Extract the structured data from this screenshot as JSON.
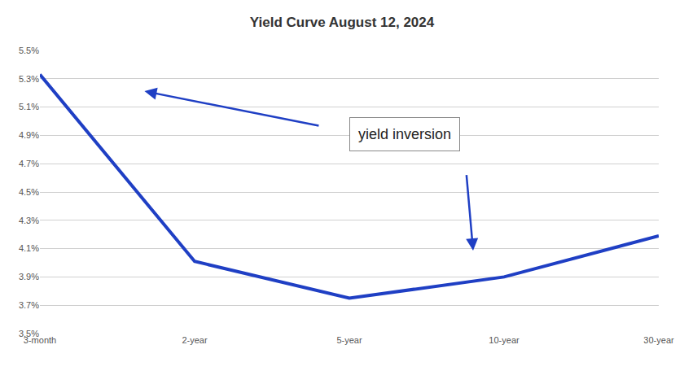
{
  "chart_data": {
    "type": "line",
    "title": "Yield Curve August 12, 2024",
    "categories": [
      "3-month",
      "2-year",
      "5-year",
      "10-year",
      "30-year"
    ],
    "values": [
      5.33,
      4.01,
      3.75,
      3.9,
      4.19
    ],
    "color": "#1f3fc4",
    "ylim": [
      3.5,
      5.5
    ],
    "yticks": [
      {
        "value": 3.5,
        "label": "3.5%"
      },
      {
        "value": 3.7,
        "label": "3.7%"
      },
      {
        "value": 3.9,
        "label": "3.9%"
      },
      {
        "value": 4.1,
        "label": "4.1%"
      },
      {
        "value": 4.3,
        "label": "4.3%"
      },
      {
        "value": 4.5,
        "label": "4.5%"
      },
      {
        "value": 4.7,
        "label": "4.7%"
      },
      {
        "value": 4.9,
        "label": "4.9%"
      },
      {
        "value": 5.1,
        "label": "5.1%"
      },
      {
        "value": 5.3,
        "label": "5.3%"
      },
      {
        "value": 5.5,
        "label": "5.5%"
      }
    ],
    "grid": true,
    "annotations": [
      "yield inversion"
    ]
  }
}
